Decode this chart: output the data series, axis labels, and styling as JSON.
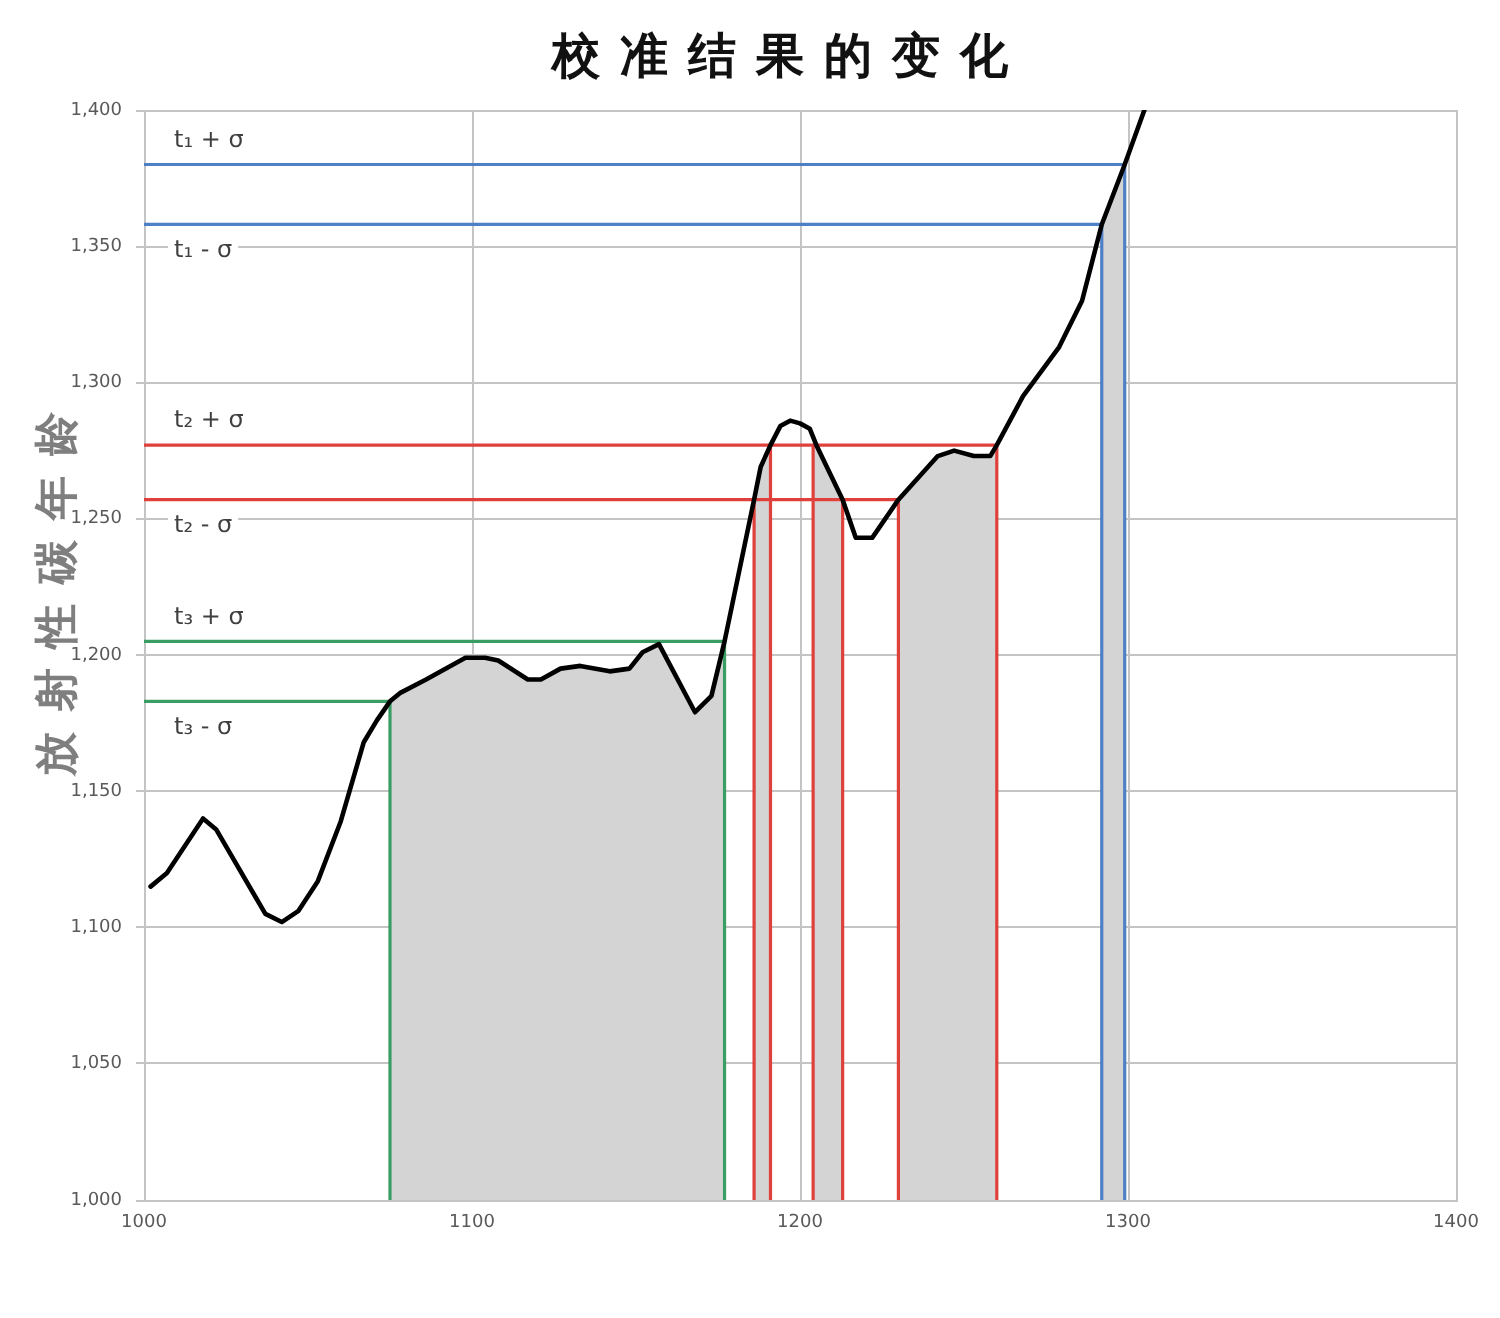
{
  "chart_data": {
    "type": "line",
    "title": "校准结果的变化",
    "ylabel": "放射性碳年龄",
    "xlim": [
      1000,
      1400
    ],
    "xticks": [
      1000,
      1100,
      1200,
      1300,
      1400
    ],
    "ylim": [
      1000,
      1400
    ],
    "yticks": [
      {
        "value": 1000,
        "label": "1,000"
      },
      {
        "value": 1050,
        "label": "1,050"
      },
      {
        "value": 1100,
        "label": "1,100"
      },
      {
        "value": 1150,
        "label": "1,150"
      },
      {
        "value": 1200,
        "label": "1,200"
      },
      {
        "value": 1250,
        "label": "1,250"
      },
      {
        "value": 1300,
        "label": "1,300"
      },
      {
        "value": 1350,
        "label": "1,350"
      },
      {
        "value": 1400,
        "label": "1,400"
      }
    ],
    "grid": true,
    "series": [
      {
        "color": "#000000",
        "x": [
          1002,
          1007,
          1018,
          1022,
          1037,
          1042,
          1047,
          1053,
          1060,
          1067,
          1071,
          1075,
          1078,
          1086,
          1098,
          1104,
          1108,
          1117,
          1121,
          1127,
          1133,
          1142,
          1148,
          1152,
          1157,
          1168,
          1173,
          1177,
          1186,
          1188,
          1191,
          1194,
          1197,
          1200,
          1203,
          1205,
          1213,
          1217,
          1222,
          1230,
          1242,
          1247,
          1253,
          1258,
          1260,
          1268,
          1279,
          1286,
          1292,
          1299,
          1305
        ],
        "values": [
          1115,
          1120,
          1140,
          1136,
          1105,
          1102,
          1106,
          1117,
          1139,
          1168,
          1176,
          1183,
          1186,
          1191,
          1199,
          1199,
          1198,
          1191,
          1191,
          1195,
          1196,
          1194,
          1195,
          1201,
          1204,
          1179,
          1185,
          1205,
          1257,
          1269,
          1277,
          1284,
          1286,
          1285,
          1283,
          1277,
          1257,
          1243,
          1243,
          1257,
          1273,
          1275,
          1273,
          1273,
          1277,
          1295,
          1313,
          1330,
          1358,
          1380,
          1400
        ]
      },
      {
        "name": "t₁ + σ",
        "color": "#4f7fc4",
        "x": [
          1000,
          1299,
          1299
        ],
        "values": [
          1380,
          1380,
          1000
        ]
      },
      {
        "name": "t₁ - σ",
        "color": "#4f7fc4",
        "x": [
          1000,
          1292,
          1292
        ],
        "values": [
          1358,
          1358,
          1000
        ]
      },
      {
        "name": "t₂ + σ",
        "color": "#e0403c",
        "x": [
          1000,
          1260,
          1260,
          null,
          1191,
          1191,
          null,
          1204,
          1204
        ],
        "values": [
          1277,
          1277,
          1000,
          null,
          1277,
          1000,
          null,
          1277,
          1000
        ]
      },
      {
        "name": "t₂ - σ",
        "color": "#e0403c",
        "x": [
          1000,
          1230,
          1230,
          null,
          1186,
          1186,
          null,
          1213,
          1213
        ],
        "values": [
          1257,
          1257,
          1000,
          null,
          1257,
          1000,
          null,
          1257,
          1000
        ]
      },
      {
        "name": "t₃ + σ",
        "color": "#3a9e64",
        "x": [
          1000,
          1177,
          1177
        ],
        "values": [
          1205,
          1205,
          1000
        ]
      },
      {
        "name": "t₃ - σ",
        "color": "#3a9e64",
        "x": [
          1000,
          1075,
          1075
        ],
        "values": [
          1183,
          1183,
          1000
        ]
      }
    ],
    "bands": [
      {
        "axis": "x",
        "from": 1075,
        "to": 1177,
        "color": "#d4d4d4"
      },
      {
        "axis": "x",
        "from": 1186,
        "to": 1191,
        "color": "#d4d4d4"
      },
      {
        "axis": "x",
        "from": 1204,
        "to": 1213,
        "color": "#d4d4d4"
      },
      {
        "axis": "x",
        "from": 1230,
        "to": 1260,
        "color": "#d4d4d4"
      },
      {
        "axis": "x",
        "from": 1292,
        "to": 1299,
        "color": "#d4d4d4"
      }
    ]
  }
}
